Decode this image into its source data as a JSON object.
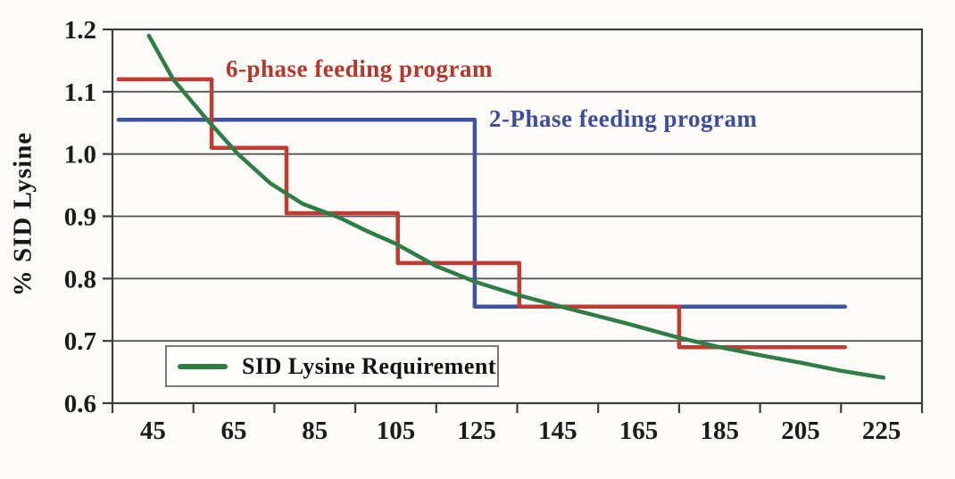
{
  "figure": {
    "y_axis_title": "% SID Lysine",
    "annotations": {
      "six_phase": {
        "text": "6-phase feeding program",
        "color": "#b5362c"
      },
      "two_phase": {
        "text": "2-Phase feeding program",
        "color": "#3c4c9e"
      }
    },
    "legend": {
      "label": "SID Lysine Requirement",
      "sample_color": "#2e7d46"
    }
  },
  "chart_data": {
    "type": "line",
    "title": "",
    "xlabel": "",
    "ylabel": "% SID Lysine",
    "x_ticks": [
      "45",
      "65",
      "85",
      "105",
      "125",
      "145",
      "165",
      "185",
      "205",
      "225"
    ],
    "y_ticks": [
      "1.2",
      "1.1",
      "1.0",
      "0.9",
      "0.8",
      "0.7",
      "0.6"
    ],
    "x_axis_boundaries": [
      35,
      235
    ],
    "ylim": [
      0.6,
      1.2
    ],
    "grid": "horizontal",
    "legend_position": "lower-left",
    "colors": {
      "grid": "#565656",
      "axis": "#3d3d3d",
      "requirement_curve": "#2e7d46",
      "six_phase": "#c23b32",
      "two_phase": "#3f51a3"
    },
    "series": [
      {
        "name": "2-Phase feeding program",
        "kind": "step",
        "color": "#3f51a3",
        "steps": [
          {
            "from": 36.5,
            "to": 124.5,
            "value": 1.055
          },
          {
            "from": 124.5,
            "to": 216,
            "value": 0.755
          }
        ]
      },
      {
        "name": "6-phase feeding program",
        "kind": "step",
        "color": "#c23b32",
        "steps": [
          {
            "from": 36.5,
            "to": 59.5,
            "value": 1.12
          },
          {
            "from": 59.5,
            "to": 78,
            "value": 1.01
          },
          {
            "from": 78,
            "to": 105.5,
            "value": 0.905
          },
          {
            "from": 105.5,
            "to": 135.5,
            "value": 0.825
          },
          {
            "from": 135.5,
            "to": 175,
            "value": 0.755
          },
          {
            "from": 175,
            "to": 216,
            "value": 0.69
          }
        ]
      },
      {
        "name": "SID Lysine Requirement",
        "kind": "curve",
        "color": "#2e7d46",
        "points": [
          [
            44,
            1.19
          ],
          [
            50,
            1.12
          ],
          [
            58,
            1.058
          ],
          [
            66,
            1.0
          ],
          [
            74,
            0.953
          ],
          [
            82,
            0.92
          ],
          [
            91,
            0.898
          ],
          [
            98,
            0.876
          ],
          [
            105,
            0.856
          ],
          [
            115,
            0.82
          ],
          [
            125,
            0.794
          ],
          [
            135,
            0.774
          ],
          [
            147,
            0.753
          ],
          [
            162,
            0.728
          ],
          [
            175,
            0.705
          ],
          [
            185,
            0.69
          ],
          [
            195,
            0.677
          ],
          [
            205,
            0.665
          ],
          [
            215,
            0.652
          ],
          [
            225.5,
            0.641
          ]
        ]
      }
    ]
  }
}
